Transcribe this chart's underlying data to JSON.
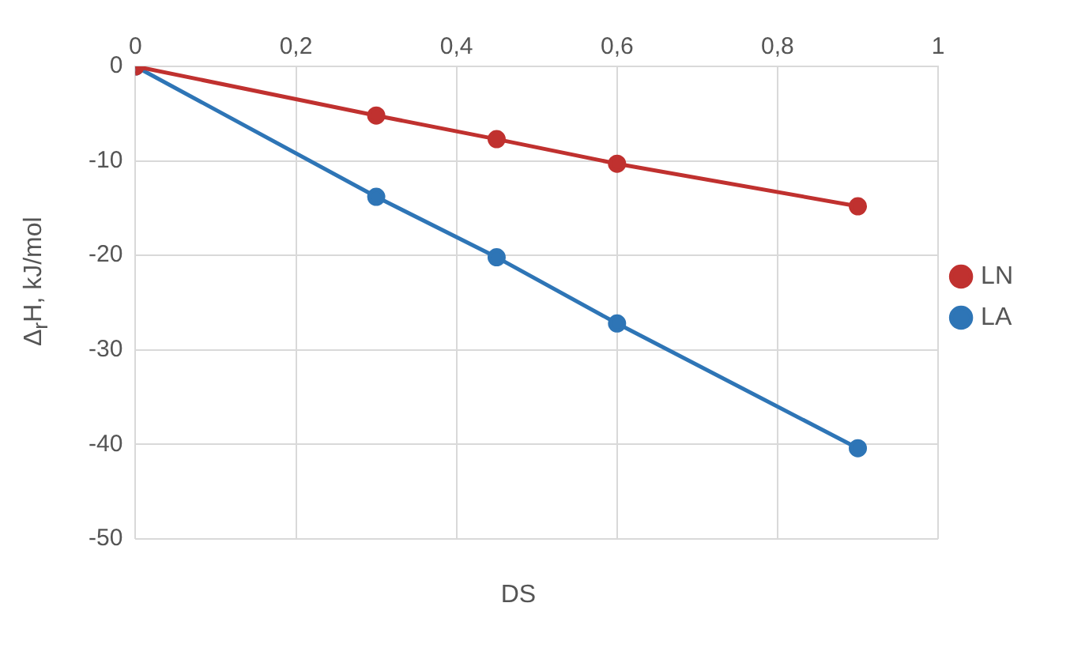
{
  "chart_data": {
    "type": "line",
    "xlabel": "DS",
    "ylabel": "Δ$_{r}$H, kJ/mol",
    "x": [
      0,
      0.3,
      0.45,
      0.6,
      0.9
    ],
    "series": [
      {
        "name": "LN",
        "color": "#c0312f",
        "values": [
          0,
          -5.2,
          -7.7,
          -10.3,
          -14.8
        ]
      },
      {
        "name": "LA",
        "color": "#2e75b6",
        "values": [
          0,
          -13.8,
          -20.2,
          -27.2,
          -40.4
        ]
      }
    ],
    "xlim": [
      0,
      1
    ],
    "xticks": [
      0,
      {
        "value": 0.2,
        "label": "0,2"
      },
      {
        "value": 0.4,
        "label": "0,4"
      },
      {
        "value": 0.6,
        "label": "0,6"
      },
      {
        "value": 0.8,
        "label": "0,8"
      },
      1
    ],
    "ylim": [
      -50,
      0
    ],
    "yticks": [
      -50,
      -40,
      -30,
      -20,
      -10,
      0
    ],
    "grid": true,
    "legend": "right",
    "marker": "circle",
    "line_style": "solid"
  }
}
